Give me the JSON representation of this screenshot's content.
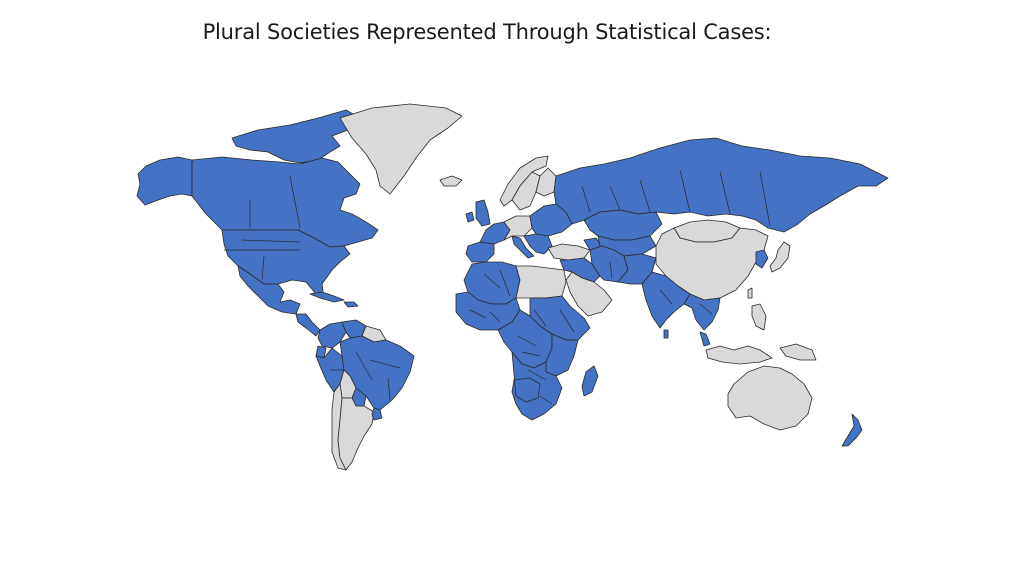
{
  "slide": {
    "title": "Plural Societies Represented Through Statistical Cases:"
  },
  "map": {
    "colors": {
      "represented": "#4472c4",
      "not_represented": "#d9d9d9",
      "border": "#2a2a2a"
    },
    "regions": [
      {
        "name": "Alaska",
        "status": "represented"
      },
      {
        "name": "Canada",
        "status": "represented"
      },
      {
        "name": "Canadian Arctic Archipelago",
        "status": "represented"
      },
      {
        "name": "Greenland",
        "status": "not_represented"
      },
      {
        "name": "Iceland",
        "status": "not_represented"
      },
      {
        "name": "United States",
        "status": "represented"
      },
      {
        "name": "Mexico",
        "status": "represented"
      },
      {
        "name": "Central America",
        "status": "represented"
      },
      {
        "name": "Cuba",
        "status": "represented"
      },
      {
        "name": "Hispaniola",
        "status": "represented"
      },
      {
        "name": "Colombia",
        "status": "represented"
      },
      {
        "name": "Venezuela",
        "status": "represented"
      },
      {
        "name": "Guianas",
        "status": "not_represented"
      },
      {
        "name": "Ecuador",
        "status": "represented"
      },
      {
        "name": "Peru",
        "status": "represented"
      },
      {
        "name": "Brazil",
        "status": "represented"
      },
      {
        "name": "Bolivia",
        "status": "not_represented"
      },
      {
        "name": "Paraguay",
        "status": "represented"
      },
      {
        "name": "Chile",
        "status": "not_represented"
      },
      {
        "name": "Argentina",
        "status": "not_represented"
      },
      {
        "name": "Uruguay",
        "status": "represented"
      },
      {
        "name": "United Kingdom",
        "status": "represented"
      },
      {
        "name": "Ireland",
        "status": "represented"
      },
      {
        "name": "Norway",
        "status": "not_represented"
      },
      {
        "name": "Sweden",
        "status": "not_represented"
      },
      {
        "name": "Finland",
        "status": "not_represented"
      },
      {
        "name": "Western Europe",
        "status": "represented"
      },
      {
        "name": "Iberia",
        "status": "represented"
      },
      {
        "name": "Italy",
        "status": "represented"
      },
      {
        "name": "Central Europe",
        "status": "not_represented"
      },
      {
        "name": "Eastern Europe",
        "status": "represented"
      },
      {
        "name": "Balkans",
        "status": "represented"
      },
      {
        "name": "Turkey",
        "status": "not_represented"
      },
      {
        "name": "Caucasus",
        "status": "represented"
      },
      {
        "name": "Russia",
        "status": "represented"
      },
      {
        "name": "Kazakhstan",
        "status": "represented"
      },
      {
        "name": "Central Asia",
        "status": "represented"
      },
      {
        "name": "Mongolia",
        "status": "not_represented"
      },
      {
        "name": "China",
        "status": "not_represented"
      },
      {
        "name": "Korea",
        "status": "represented"
      },
      {
        "name": "Japan",
        "status": "not_represented"
      },
      {
        "name": "Middle East",
        "status": "represented"
      },
      {
        "name": "Arabian Peninsula",
        "status": "not_represented"
      },
      {
        "name": "Iran",
        "status": "represented"
      },
      {
        "name": "Afghanistan & Pakistan",
        "status": "represented"
      },
      {
        "name": "India",
        "status": "represented"
      },
      {
        "name": "Sri Lanka",
        "status": "represented"
      },
      {
        "name": "Mainland Southeast Asia",
        "status": "represented"
      },
      {
        "name": "Malay Peninsula",
        "status": "represented"
      },
      {
        "name": "Philippines",
        "status": "not_represented"
      },
      {
        "name": "Indonesia",
        "status": "not_represented"
      },
      {
        "name": "New Guinea",
        "status": "not_represented"
      },
      {
        "name": "Australia",
        "status": "not_represented"
      },
      {
        "name": "New Zealand",
        "status": "represented"
      },
      {
        "name": "Taiwan",
        "status": "not_represented"
      },
      {
        "name": "North Africa",
        "status": "represented"
      },
      {
        "name": "Libya & Egypt",
        "status": "not_represented"
      },
      {
        "name": "West Africa",
        "status": "represented"
      },
      {
        "name": "Sudan & Horn of Africa",
        "status": "represented"
      },
      {
        "name": "Central Africa",
        "status": "represented"
      },
      {
        "name": "East Africa",
        "status": "represented"
      },
      {
        "name": "Southern Africa",
        "status": "represented"
      },
      {
        "name": "Namibia & Botswana",
        "status": "not_represented"
      },
      {
        "name": "Madagascar",
        "status": "represented"
      }
    ]
  }
}
